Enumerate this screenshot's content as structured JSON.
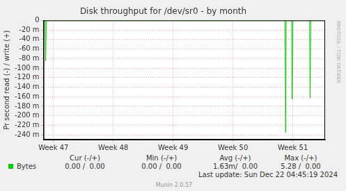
{
  "chart_data": {
    "type": "line",
    "title": "Disk throughput for /dev/sr0 - by month",
    "y_label": "Pr second read (-) / write (+)",
    "x": [
      46.835,
      46.86,
      46.87,
      46.88,
      50.87,
      50.88,
      50.89,
      50.98,
      50.99,
      51.0,
      51.28,
      51.29,
      51.3,
      51.54
    ],
    "series": [
      {
        "name": "Bytes",
        "color": "#00cc00",
        "values": [
          0,
          0,
          -0.085,
          0,
          0,
          -0.235,
          0,
          0,
          -0.165,
          0,
          0,
          -0.163,
          0,
          0
        ],
        "summary": [
          "0.00 /  0.00",
          "0.00 /  0.00",
          "1.63m/  0.00",
          "5.28 /  0.00"
        ]
      }
    ],
    "summary_columns": [
      "Cur (-/+)",
      "Min (-/+)",
      "Avg (-/+)",
      "Max (-/+)"
    ],
    "xlim": [
      46.835,
      51.54
    ],
    "xticks": [
      {
        "value": 47,
        "label": "Week 47"
      },
      {
        "value": 48,
        "label": "Week 48"
      },
      {
        "value": 49,
        "label": "Week 49"
      },
      {
        "value": 50,
        "label": "Week 50"
      },
      {
        "value": 51,
        "label": "Week 51"
      }
    ],
    "ylim": [
      -0.25,
      0
    ],
    "yticks": [
      0,
      {
        "value": -0.02,
        "label": "-20 m"
      },
      {
        "value": -0.04,
        "label": "-40 m"
      },
      {
        "value": -0.06,
        "label": "-60 m"
      },
      {
        "value": -0.08,
        "label": "-80 m"
      },
      {
        "value": -0.1,
        "label": "-100 m"
      },
      {
        "value": -0.12,
        "label": "-120 m"
      },
      {
        "value": -0.14,
        "label": "-140 m"
      },
      {
        "value": -0.16,
        "label": "-160 m"
      },
      {
        "value": -0.18,
        "label": "-180 m"
      },
      {
        "value": -0.2,
        "label": "-200 m"
      },
      {
        "value": -0.22,
        "label": "-220 m"
      },
      {
        "value": -0.24,
        "label": "-240 m"
      }
    ],
    "grid": true,
    "last_update": "Last update: Sun Dec 22 04:45:19 2024",
    "footer": "Munin 2.0.57",
    "watermark": "RRDTOOL / TOBI OETIKER"
  }
}
